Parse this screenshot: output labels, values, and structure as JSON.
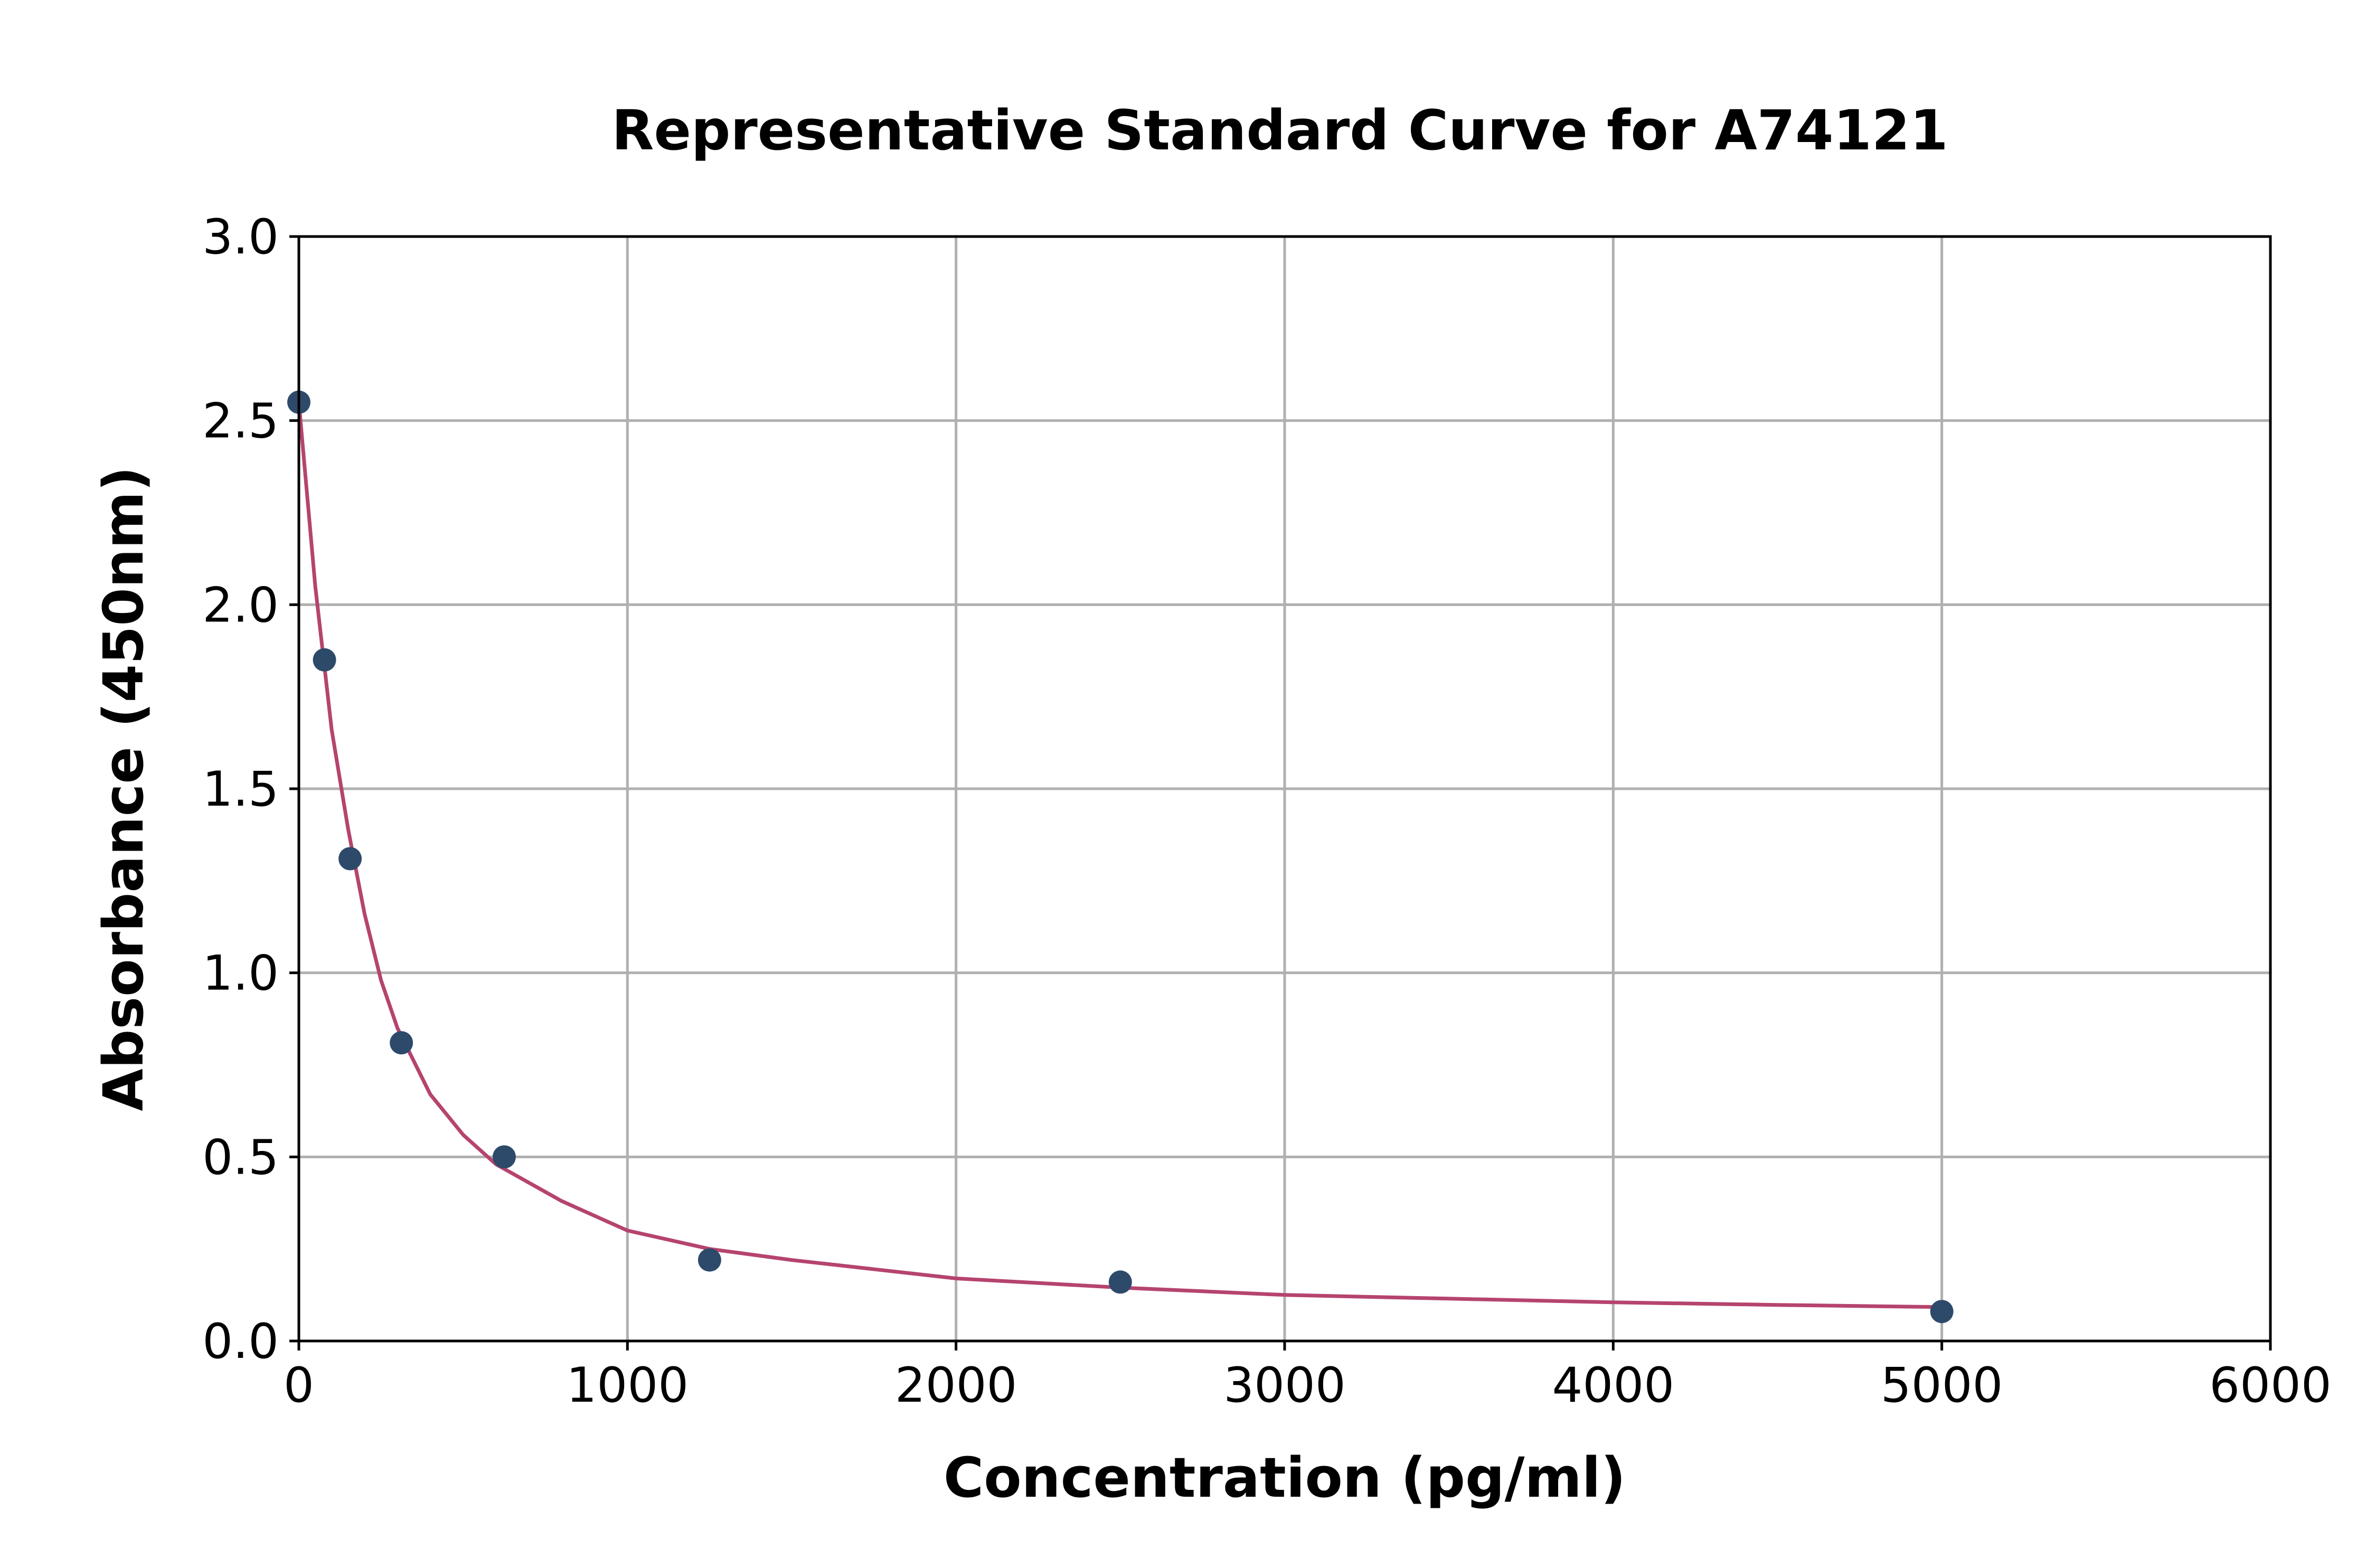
{
  "chart_data": {
    "type": "scatter",
    "title": "Representative Standard Curve for A74121",
    "xlabel": "Concentration (pg/ml)",
    "ylabel": "Absorbance (450nm)",
    "xlim": [
      0,
      6000
    ],
    "ylim": [
      0,
      3.0
    ],
    "xticks": [
      "0",
      "1000",
      "2000",
      "3000",
      "4000",
      "5000",
      "6000"
    ],
    "yticks": [
      "0.0",
      "0.5",
      "1.0",
      "1.5",
      "2.0",
      "2.5",
      "3.0"
    ],
    "grid": true,
    "series": [
      {
        "type": "scatter",
        "color": "#2e4a6b",
        "points": [
          {
            "x": 0,
            "y": 2.55
          },
          {
            "x": 78,
            "y": 1.85
          },
          {
            "x": 156,
            "y": 1.31
          },
          {
            "x": 312,
            "y": 0.81
          },
          {
            "x": 625,
            "y": 0.5
          },
          {
            "x": 1250,
            "y": 0.22
          },
          {
            "x": 2500,
            "y": 0.16
          },
          {
            "x": 5000,
            "y": 0.08
          }
        ]
      },
      {
        "type": "line",
        "color": "#b5446e",
        "points": [
          {
            "x": 0,
            "y": 2.55
          },
          {
            "x": 50,
            "y": 2.05
          },
          {
            "x": 100,
            "y": 1.66
          },
          {
            "x": 150,
            "y": 1.39
          },
          {
            "x": 200,
            "y": 1.16
          },
          {
            "x": 250,
            "y": 0.98
          },
          {
            "x": 300,
            "y": 0.85
          },
          {
            "x": 400,
            "y": 0.67
          },
          {
            "x": 500,
            "y": 0.56
          },
          {
            "x": 600,
            "y": 0.48
          },
          {
            "x": 800,
            "y": 0.38
          },
          {
            "x": 1000,
            "y": 0.3
          },
          {
            "x": 1250,
            "y": 0.25
          },
          {
            "x": 1500,
            "y": 0.22
          },
          {
            "x": 2000,
            "y": 0.17
          },
          {
            "x": 2500,
            "y": 0.145
          },
          {
            "x": 3000,
            "y": 0.125
          },
          {
            "x": 3500,
            "y": 0.115
          },
          {
            "x": 4000,
            "y": 0.105
          },
          {
            "x": 4500,
            "y": 0.098
          },
          {
            "x": 5000,
            "y": 0.092
          }
        ]
      }
    ]
  }
}
